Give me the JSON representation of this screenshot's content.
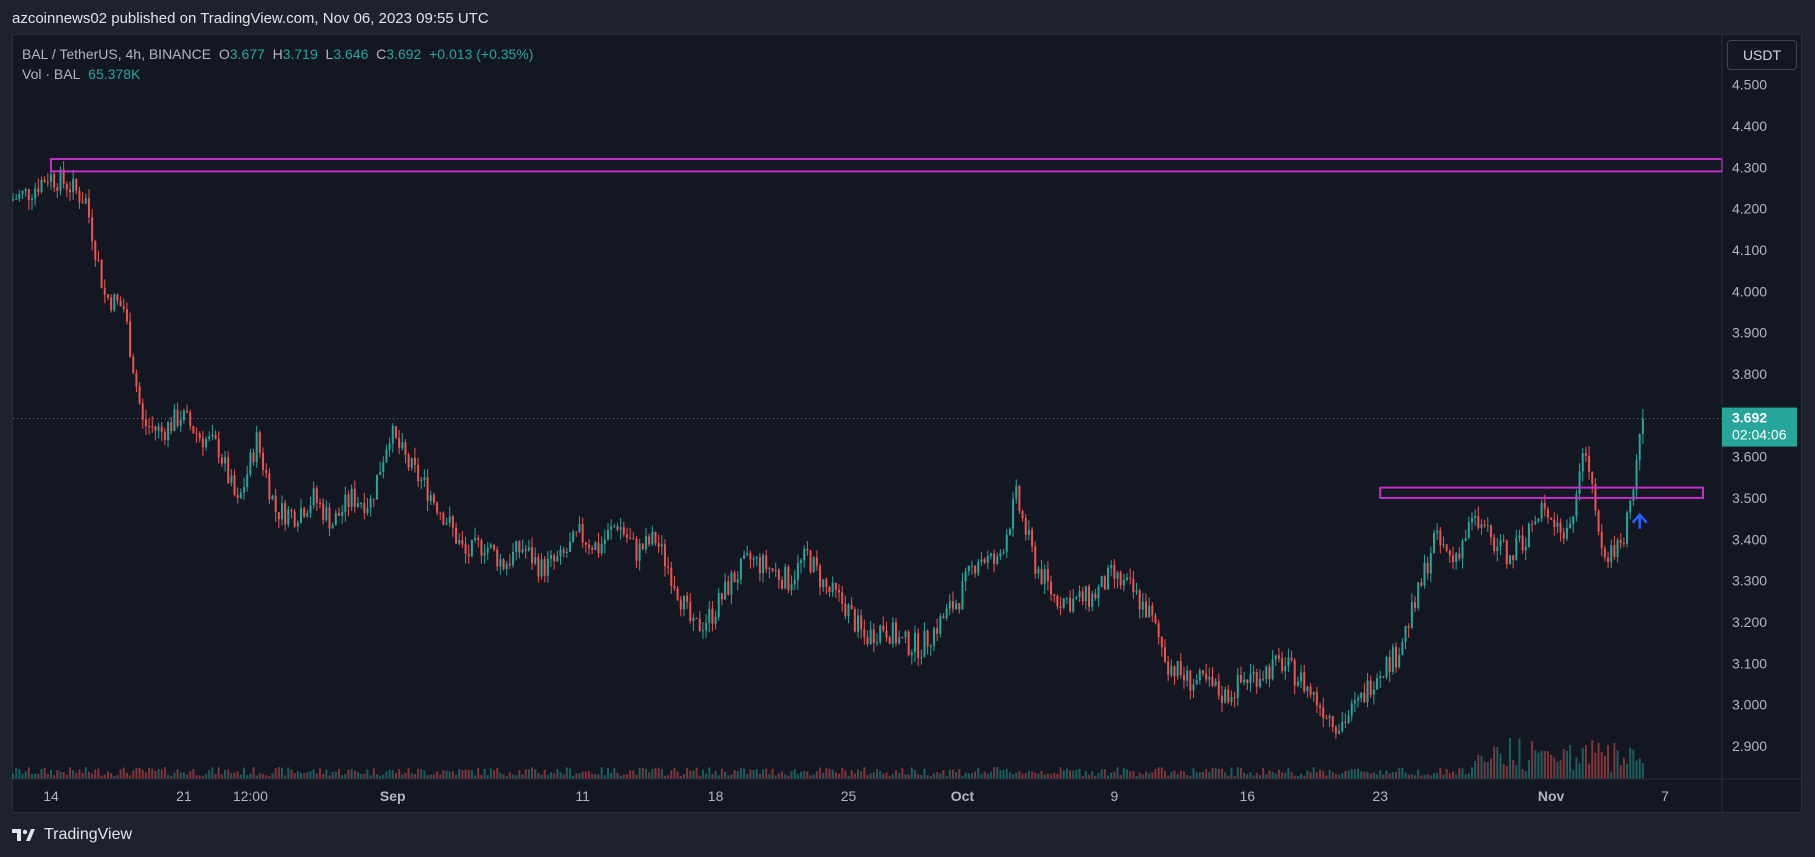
{
  "header": {
    "published": "azcoinnews02 published on TradingView.com, Nov 06, 2023 09:55 UTC"
  },
  "legend": {
    "symbol": "BAL / TetherUS, 4h, BINANCE",
    "o_label": "O",
    "o_value": "3.677",
    "h_label": "H",
    "h_value": "3.719",
    "l_label": "L",
    "l_value": "3.646",
    "c_label": "C",
    "c_value": "3.692",
    "change": "+0.013 (+0.35%)",
    "vol_label": "Vol · BAL",
    "vol_value": "65.378K"
  },
  "price_scale": {
    "unit": "USDT",
    "last_price": "3.692",
    "countdown": "02:04:06"
  },
  "footer": {
    "brand": "TradingView"
  },
  "colors": {
    "up": "#26a69a",
    "down": "#ef5350",
    "zone": "#c030c8",
    "arrow": "#2962ff",
    "background": "#131722"
  },
  "chart_data": {
    "type": "candlestick",
    "symbol": "BAL / TetherUS",
    "interval": "4h",
    "exchange": "BINANCE",
    "ylim": [
      2.82,
      4.62
    ],
    "y_ticks": [
      "4.500",
      "4.400",
      "4.300",
      "4.200",
      "4.100",
      "4.000",
      "3.900",
      "3.800",
      "3.700",
      "3.600",
      "3.500",
      "3.400",
      "3.300",
      "3.200",
      "3.100",
      "3.000",
      "2.900"
    ],
    "x_ticks": [
      {
        "label": "14",
        "date": "2023-08-14",
        "bold": false
      },
      {
        "label": "21",
        "date": "2023-08-21",
        "bold": false
      },
      {
        "label": "12:00",
        "date": "2023-08-24T12:00",
        "bold": false
      },
      {
        "label": "Sep",
        "date": "2023-09-01",
        "bold": true
      },
      {
        "label": "11",
        "date": "2023-09-11",
        "bold": false
      },
      {
        "label": "18",
        "date": "2023-09-18",
        "bold": false
      },
      {
        "label": "25",
        "date": "2023-09-25",
        "bold": false
      },
      {
        "label": "Oct",
        "date": "2023-10-01",
        "bold": true
      },
      {
        "label": "9",
        "date": "2023-10-09",
        "bold": false
      },
      {
        "label": "16",
        "date": "2023-10-16",
        "bold": false
      },
      {
        "label": "23",
        "date": "2023-10-23",
        "bold": false
      },
      {
        "label": "Nov",
        "date": "2023-11-01",
        "bold": true
      },
      {
        "label": "7",
        "date": "2023-11-07",
        "bold": false
      }
    ],
    "last_price": 3.692,
    "zones": [
      {
        "start": "2023-08-14",
        "end": "2023-11-10",
        "top": 4.32,
        "bottom": 4.29
      },
      {
        "start": "2023-10-23",
        "end": "2023-11-09",
        "top": 3.525,
        "bottom": 3.5
      }
    ],
    "arrow": {
      "date": "2023-11-05T16:00",
      "price": 3.44,
      "direction": "up"
    },
    "path": [
      {
        "date": "2023-08-12",
        "close": 4.22
      },
      {
        "date": "2023-08-13",
        "close": 4.24
      },
      {
        "date": "2023-08-14",
        "close": 4.28
      },
      {
        "date": "2023-08-15",
        "close": 4.26
      },
      {
        "date": "2023-08-16",
        "close": 4.22
      },
      {
        "date": "2023-08-17",
        "close": 3.99
      },
      {
        "date": "2023-08-18",
        "close": 3.96
      },
      {
        "date": "2023-08-19",
        "close": 3.68
      },
      {
        "date": "2023-08-20",
        "close": 3.66
      },
      {
        "date": "2023-08-21",
        "close": 3.7
      },
      {
        "date": "2023-08-22",
        "close": 3.65
      },
      {
        "date": "2023-08-23",
        "close": 3.62
      },
      {
        "date": "2023-08-24",
        "close": 3.48
      },
      {
        "date": "2023-08-25",
        "close": 3.64
      },
      {
        "date": "2023-08-26",
        "close": 3.47
      },
      {
        "date": "2023-08-27",
        "close": 3.46
      },
      {
        "date": "2023-08-28",
        "close": 3.5
      },
      {
        "date": "2023-08-29",
        "close": 3.44
      },
      {
        "date": "2023-08-30",
        "close": 3.5
      },
      {
        "date": "2023-08-31",
        "close": 3.49
      },
      {
        "date": "2023-09-01",
        "close": 3.66
      },
      {
        "date": "2023-09-02",
        "close": 3.58
      },
      {
        "date": "2023-09-03",
        "close": 3.52
      },
      {
        "date": "2023-09-04",
        "close": 3.45
      },
      {
        "date": "2023-09-05",
        "close": 3.36
      },
      {
        "date": "2023-09-06",
        "close": 3.39
      },
      {
        "date": "2023-09-07",
        "close": 3.34
      },
      {
        "date": "2023-09-08",
        "close": 3.38
      },
      {
        "date": "2023-09-09",
        "close": 3.33
      },
      {
        "date": "2023-09-10",
        "close": 3.35
      },
      {
        "date": "2023-09-11",
        "close": 3.41
      },
      {
        "date": "2023-09-12",
        "close": 3.38
      },
      {
        "date": "2023-09-13",
        "close": 3.44
      },
      {
        "date": "2023-09-14",
        "close": 3.37
      },
      {
        "date": "2023-09-15",
        "close": 3.4
      },
      {
        "date": "2023-09-16",
        "close": 3.3
      },
      {
        "date": "2023-09-17",
        "close": 3.18
      },
      {
        "date": "2023-09-18",
        "close": 3.22
      },
      {
        "date": "2023-09-19",
        "close": 3.3
      },
      {
        "date": "2023-09-20",
        "close": 3.35
      },
      {
        "date": "2023-09-21",
        "close": 3.33
      },
      {
        "date": "2023-09-22",
        "close": 3.3
      },
      {
        "date": "2023-09-23",
        "close": 3.36
      },
      {
        "date": "2023-09-24",
        "close": 3.28
      },
      {
        "date": "2023-09-25",
        "close": 3.24
      },
      {
        "date": "2023-09-26",
        "close": 3.16
      },
      {
        "date": "2023-09-27",
        "close": 3.19
      },
      {
        "date": "2023-09-28",
        "close": 3.15
      },
      {
        "date": "2023-09-29",
        "close": 3.14
      },
      {
        "date": "2023-09-30",
        "close": 3.2
      },
      {
        "date": "2023-10-01",
        "close": 3.26
      },
      {
        "date": "2023-10-02",
        "close": 3.36
      },
      {
        "date": "2023-10-03",
        "close": 3.34
      },
      {
        "date": "2023-10-04",
        "close": 3.5
      },
      {
        "date": "2023-10-05",
        "close": 3.34
      },
      {
        "date": "2023-10-06",
        "close": 3.26
      },
      {
        "date": "2023-10-07",
        "close": 3.25
      },
      {
        "date": "2023-10-08",
        "close": 3.26
      },
      {
        "date": "2023-10-09",
        "close": 3.31
      },
      {
        "date": "2023-10-10",
        "close": 3.28
      },
      {
        "date": "2023-10-11",
        "close": 3.22
      },
      {
        "date": "2023-10-12",
        "close": 3.1
      },
      {
        "date": "2023-10-13",
        "close": 3.06
      },
      {
        "date": "2023-10-14",
        "close": 3.05
      },
      {
        "date": "2023-10-15",
        "close": 3.02
      },
      {
        "date": "2023-10-16",
        "close": 3.06
      },
      {
        "date": "2023-10-17",
        "close": 3.08
      },
      {
        "date": "2023-10-18",
        "close": 3.1
      },
      {
        "date": "2023-10-19",
        "close": 3.06
      },
      {
        "date": "2023-10-20",
        "close": 3.0
      },
      {
        "date": "2023-10-21",
        "close": 2.95
      },
      {
        "date": "2023-10-22",
        "close": 3.0
      },
      {
        "date": "2023-10-23",
        "close": 3.08
      },
      {
        "date": "2023-10-24",
        "close": 3.12
      },
      {
        "date": "2023-10-25",
        "close": 3.24
      },
      {
        "date": "2023-10-26",
        "close": 3.4
      },
      {
        "date": "2023-10-27",
        "close": 3.35
      },
      {
        "date": "2023-10-28",
        "close": 3.44
      },
      {
        "date": "2023-10-29",
        "close": 3.4
      },
      {
        "date": "2023-10-30",
        "close": 3.36
      },
      {
        "date": "2023-10-31",
        "close": 3.42
      },
      {
        "date": "2023-11-01",
        "close": 3.48
      },
      {
        "date": "2023-11-02",
        "close": 3.4
      },
      {
        "date": "2023-11-03",
        "close": 3.62
      },
      {
        "date": "2023-11-04",
        "close": 3.36
      },
      {
        "date": "2023-11-05",
        "close": 3.4
      },
      {
        "date": "2023-11-06",
        "close": 3.69
      }
    ]
  }
}
